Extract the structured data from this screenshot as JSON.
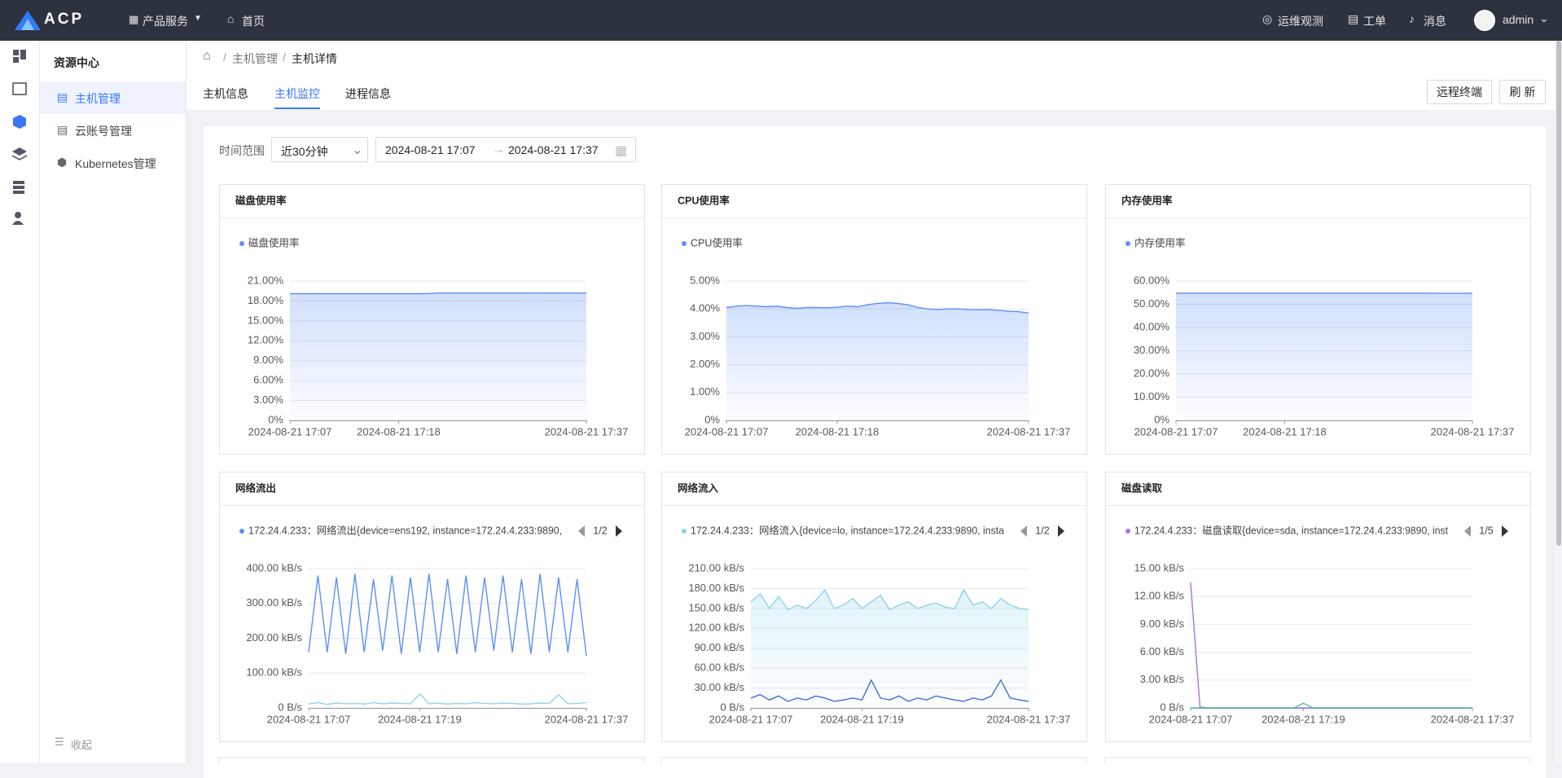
{
  "header": {
    "logo": "ACP",
    "menu": "产品服务",
    "home": "首页",
    "links": [
      "运维观测",
      "工单",
      "消息"
    ],
    "user": "admin"
  },
  "sidebar": {
    "title": "资源中心",
    "items": [
      "主机管理",
      "云账号管理",
      "Kubernetes管理"
    ],
    "collapse": "收起"
  },
  "breadcrumb": [
    "主机管理",
    "主机详情"
  ],
  "tabs": [
    "主机信息",
    "主机监控",
    "进程信息"
  ],
  "actions": [
    "远程终端",
    "刷 新"
  ],
  "filter": {
    "label": "时间范围",
    "range": "近30分钟",
    "start": "2024-08-21 17:07",
    "end": "2024-08-21 17:37"
  },
  "chart_data": [
    {
      "type": "line",
      "title": "磁盘使用率",
      "x": [
        "2024-08-21 17:07",
        "2024-08-21 17:08",
        "2024-08-21 17:09",
        "2024-08-21 17:10",
        "2024-08-21 17:11",
        "2024-08-21 17:12",
        "2024-08-21 17:13",
        "2024-08-21 17:14",
        "2024-08-21 17:15",
        "2024-08-21 17:16",
        "2024-08-21 17:17",
        "2024-08-21 17:18",
        "2024-08-21 17:19",
        "2024-08-21 17:20",
        "2024-08-21 17:21",
        "2024-08-21 17:22",
        "2024-08-21 17:23",
        "2024-08-21 17:24",
        "2024-08-21 17:25",
        "2024-08-21 17:26",
        "2024-08-21 17:27",
        "2024-08-21 17:28",
        "2024-08-21 17:29",
        "2024-08-21 17:30",
        "2024-08-21 17:31",
        "2024-08-21 17:32",
        "2024-08-21 17:33",
        "2024-08-21 17:34",
        "2024-08-21 17:35",
        "2024-08-21 17:36",
        "2024-08-21 17:37"
      ],
      "xticks": [
        "2024-08-21 17:07",
        "2024-08-21 17:18",
        "2024-08-21 17:37"
      ],
      "ylim": [
        0,
        21
      ],
      "yticks": [
        {
          "value": 0,
          "label": "0%"
        },
        {
          "value": 3,
          "label": "3.00%"
        },
        {
          "value": 6,
          "label": "6.00%"
        },
        {
          "value": 9,
          "label": "9.00%"
        },
        {
          "value": 12,
          "label": "12.00%"
        },
        {
          "value": 15,
          "label": "15.00%"
        },
        {
          "value": 18,
          "label": "18.00%"
        },
        {
          "value": 21,
          "label": "21.00%"
        }
      ],
      "grid": true,
      "series": [
        {
          "name": "磁盘使用率",
          "color": "#5b8ff9",
          "area": true,
          "values": [
            19.1,
            19.1,
            19.1,
            19.1,
            19.1,
            19.1,
            19.1,
            19.1,
            19.1,
            19.1,
            19.1,
            19.1,
            19.1,
            19.1,
            19.1,
            19.2,
            19.2,
            19.2,
            19.2,
            19.2,
            19.2,
            19.2,
            19.2,
            19.2,
            19.2,
            19.2,
            19.2,
            19.2,
            19.2,
            19.2,
            19.2
          ]
        }
      ]
    },
    {
      "type": "line",
      "title": "CPU使用率",
      "x": [
        "2024-08-21 17:07",
        "2024-08-21 17:08",
        "2024-08-21 17:09",
        "2024-08-21 17:10",
        "2024-08-21 17:11",
        "2024-08-21 17:12",
        "2024-08-21 17:13",
        "2024-08-21 17:14",
        "2024-08-21 17:15",
        "2024-08-21 17:16",
        "2024-08-21 17:17",
        "2024-08-21 17:18",
        "2024-08-21 17:19",
        "2024-08-21 17:20",
        "2024-08-21 17:21",
        "2024-08-21 17:22",
        "2024-08-21 17:23",
        "2024-08-21 17:24",
        "2024-08-21 17:25",
        "2024-08-21 17:26",
        "2024-08-21 17:27",
        "2024-08-21 17:28",
        "2024-08-21 17:29",
        "2024-08-21 17:30",
        "2024-08-21 17:31",
        "2024-08-21 17:32",
        "2024-08-21 17:33",
        "2024-08-21 17:34",
        "2024-08-21 17:35",
        "2024-08-21 17:36",
        "2024-08-21 17:37"
      ],
      "xticks": [
        "2024-08-21 17:07",
        "2024-08-21 17:18",
        "2024-08-21 17:37"
      ],
      "ylim": [
        0,
        5
      ],
      "yticks": [
        {
          "value": 0,
          "label": "0%"
        },
        {
          "value": 1,
          "label": "1.00%"
        },
        {
          "value": 2,
          "label": "2.00%"
        },
        {
          "value": 3,
          "label": "3.00%"
        },
        {
          "value": 4,
          "label": "4.00%"
        },
        {
          "value": 5,
          "label": "5.00%"
        }
      ],
      "grid": true,
      "series": [
        {
          "name": "CPU使用率",
          "color": "#5b8ff9",
          "area": true,
          "values": [
            4.05,
            4.1,
            4.12,
            4.1,
            4.08,
            4.1,
            4.05,
            4.02,
            4.05,
            4.05,
            4.04,
            4.06,
            4.1,
            4.08,
            4.15,
            4.2,
            4.22,
            4.2,
            4.15,
            4.05,
            4.0,
            3.98,
            4.0,
            4.0,
            3.98,
            3.97,
            3.98,
            3.95,
            3.92,
            3.9,
            3.85
          ]
        }
      ]
    },
    {
      "type": "line",
      "title": "内存使用率",
      "x": [
        "2024-08-21 17:07",
        "2024-08-21 17:08",
        "2024-08-21 17:09",
        "2024-08-21 17:10",
        "2024-08-21 17:11",
        "2024-08-21 17:12",
        "2024-08-21 17:13",
        "2024-08-21 17:14",
        "2024-08-21 17:15",
        "2024-08-21 17:16",
        "2024-08-21 17:17",
        "2024-08-21 17:18",
        "2024-08-21 17:19",
        "2024-08-21 17:20",
        "2024-08-21 17:21",
        "2024-08-21 17:22",
        "2024-08-21 17:23",
        "2024-08-21 17:24",
        "2024-08-21 17:25",
        "2024-08-21 17:26",
        "2024-08-21 17:27",
        "2024-08-21 17:28",
        "2024-08-21 17:29",
        "2024-08-21 17:30",
        "2024-08-21 17:31",
        "2024-08-21 17:32",
        "2024-08-21 17:33",
        "2024-08-21 17:34",
        "2024-08-21 17:35",
        "2024-08-21 17:36",
        "2024-08-21 17:37"
      ],
      "xticks": [
        "2024-08-21 17:07",
        "2024-08-21 17:18",
        "2024-08-21 17:37"
      ],
      "ylim": [
        0,
        60
      ],
      "yticks": [
        {
          "value": 0,
          "label": "0%"
        },
        {
          "value": 10,
          "label": "10.00%"
        },
        {
          "value": 20,
          "label": "20.00%"
        },
        {
          "value": 30,
          "label": "30.00%"
        },
        {
          "value": 40,
          "label": "40.00%"
        },
        {
          "value": 50,
          "label": "50.00%"
        },
        {
          "value": 60,
          "label": "60.00%"
        }
      ],
      "grid": true,
      "series": [
        {
          "name": "内存使用率",
          "color": "#5b8ff9",
          "area": true,
          "values": [
            54.8,
            54.8,
            54.8,
            54.8,
            54.8,
            54.8,
            54.8,
            54.8,
            54.8,
            54.8,
            54.8,
            54.8,
            54.8,
            54.8,
            54.8,
            54.8,
            54.8,
            54.8,
            54.8,
            54.8,
            54.8,
            54.8,
            54.8,
            54.8,
            54.8,
            54.8,
            54.7,
            54.7,
            54.7,
            54.7,
            54.7
          ]
        }
      ]
    },
    {
      "type": "line",
      "title": "网络流出",
      "legend_page": "1/2",
      "x": [
        "2024-08-21 17:07",
        "2024-08-21 17:08",
        "2024-08-21 17:09",
        "2024-08-21 17:10",
        "2024-08-21 17:11",
        "2024-08-21 17:12",
        "2024-08-21 17:13",
        "2024-08-21 17:14",
        "2024-08-21 17:15",
        "2024-08-21 17:16",
        "2024-08-21 17:17",
        "2024-08-21 17:18",
        "2024-08-21 17:19",
        "2024-08-21 17:20",
        "2024-08-21 17:21",
        "2024-08-21 17:22",
        "2024-08-21 17:23",
        "2024-08-21 17:24",
        "2024-08-21 17:25",
        "2024-08-21 17:26",
        "2024-08-21 17:27",
        "2024-08-21 17:28",
        "2024-08-21 17:29",
        "2024-08-21 17:30",
        "2024-08-21 17:31",
        "2024-08-21 17:32",
        "2024-08-21 17:33",
        "2024-08-21 17:34",
        "2024-08-21 17:35",
        "2024-08-21 17:36",
        "2024-08-21 17:37"
      ],
      "xticks": [
        "2024-08-21 17:07",
        "2024-08-21 17:19",
        "2024-08-21 17:37"
      ],
      "ylim": [
        0,
        400
      ],
      "yticks": [
        {
          "value": 0,
          "label": "0 B/s"
        },
        {
          "value": 100,
          "label": "100.00 kB/s"
        },
        {
          "value": 200,
          "label": "200.00 kB/s"
        },
        {
          "value": 300,
          "label": "300.00 kB/s"
        },
        {
          "value": 400,
          "label": "400.00 kB/s"
        }
      ],
      "grid": true,
      "series": [
        {
          "name": "172.24.4.233：网络流出{device=ens192, instance=172.24.4.233:9890,",
          "color": "#5b8ff9",
          "values": [
            160,
            380,
            160,
            375,
            155,
            385,
            160,
            370,
            165,
            380,
            155,
            375,
            160,
            385,
            160,
            370,
            155,
            380,
            160,
            375,
            165,
            380,
            160,
            370,
            155,
            385,
            160,
            375,
            160,
            370,
            150
          ]
        },
        {
          "color": "#8fd3ec",
          "values": [
            12,
            15,
            10,
            14,
            12,
            13,
            11,
            15,
            12,
            14,
            13,
            12,
            40,
            12,
            14,
            11,
            13,
            12,
            15,
            13,
            12,
            14,
            13,
            11,
            12,
            14,
            13,
            38,
            12,
            13,
            15
          ]
        }
      ]
    },
    {
      "type": "line",
      "title": "网络流入",
      "legend_page": "1/2",
      "x": [
        "2024-08-21 17:07",
        "2024-08-21 17:08",
        "2024-08-21 17:09",
        "2024-08-21 17:10",
        "2024-08-21 17:11",
        "2024-08-21 17:12",
        "2024-08-21 17:13",
        "2024-08-21 17:14",
        "2024-08-21 17:15",
        "2024-08-21 17:16",
        "2024-08-21 17:17",
        "2024-08-21 17:18",
        "2024-08-21 17:19",
        "2024-08-21 17:20",
        "2024-08-21 17:21",
        "2024-08-21 17:22",
        "2024-08-21 17:23",
        "2024-08-21 17:24",
        "2024-08-21 17:25",
        "2024-08-21 17:26",
        "2024-08-21 17:27",
        "2024-08-21 17:28",
        "2024-08-21 17:29",
        "2024-08-21 17:30",
        "2024-08-21 17:31",
        "2024-08-21 17:32",
        "2024-08-21 17:33",
        "2024-08-21 17:34",
        "2024-08-21 17:35",
        "2024-08-21 17:36",
        "2024-08-21 17:37"
      ],
      "xticks": [
        "2024-08-21 17:07",
        "2024-08-21 17:19",
        "2024-08-21 17:37"
      ],
      "ylim": [
        0,
        210
      ],
      "yticks": [
        {
          "value": 0,
          "label": "0 B/s"
        },
        {
          "value": 30,
          "label": "30.00 kB/s"
        },
        {
          "value": 60,
          "label": "60.00 kB/s"
        },
        {
          "value": 90,
          "label": "90.00 kB/s"
        },
        {
          "value": 120,
          "label": "120.00 kB/s"
        },
        {
          "value": 150,
          "label": "150.00 kB/s"
        },
        {
          "value": 180,
          "label": "180.00 kB/s"
        },
        {
          "value": 210,
          "label": "210.00 kB/s"
        }
      ],
      "grid": true,
      "series": [
        {
          "name": "172.24.4.233：网络流入{device=lo, instance=172.24.4.233:9890, insta",
          "color": "#8fd3ec",
          "area": true,
          "values": [
            160,
            172,
            150,
            168,
            148,
            155,
            150,
            162,
            178,
            150,
            155,
            165,
            150,
            160,
            170,
            148,
            155,
            160,
            150,
            155,
            158,
            152,
            150,
            178,
            155,
            160,
            150,
            165,
            155,
            150,
            148
          ]
        },
        {
          "color": "#3f6fd8",
          "values": [
            15,
            20,
            12,
            18,
            10,
            15,
            12,
            18,
            15,
            10,
            12,
            15,
            12,
            42,
            15,
            12,
            18,
            10,
            15,
            12,
            18,
            15,
            12,
            10,
            15,
            12,
            18,
            42,
            15,
            12,
            10
          ]
        }
      ]
    },
    {
      "type": "line",
      "title": "磁盘读取",
      "legend_page": "1/5",
      "x": [
        "2024-08-21 17:07",
        "2024-08-21 17:08",
        "2024-08-21 17:09",
        "2024-08-21 17:10",
        "2024-08-21 17:11",
        "2024-08-21 17:12",
        "2024-08-21 17:13",
        "2024-08-21 17:14",
        "2024-08-21 17:15",
        "2024-08-21 17:16",
        "2024-08-21 17:17",
        "2024-08-21 17:18",
        "2024-08-21 17:19",
        "2024-08-21 17:20",
        "2024-08-21 17:21",
        "2024-08-21 17:22",
        "2024-08-21 17:23",
        "2024-08-21 17:24",
        "2024-08-21 17:25",
        "2024-08-21 17:26",
        "2024-08-21 17:27",
        "2024-08-21 17:28",
        "2024-08-21 17:29",
        "2024-08-21 17:30",
        "2024-08-21 17:31",
        "2024-08-21 17:32",
        "2024-08-21 17:33",
        "2024-08-21 17:34",
        "2024-08-21 17:35",
        "2024-08-21 17:36",
        "2024-08-21 17:37"
      ],
      "xticks": [
        "2024-08-21 17:07",
        "2024-08-21 17:19",
        "2024-08-21 17:37"
      ],
      "ylim": [
        0,
        15
      ],
      "yticks": [
        {
          "value": 0,
          "label": "0 B/s"
        },
        {
          "value": 3,
          "label": "3.00 kB/s"
        },
        {
          "value": 6,
          "label": "6.00 kB/s"
        },
        {
          "value": 9,
          "label": "9.00 kB/s"
        },
        {
          "value": 12,
          "label": "12.00 kB/s"
        },
        {
          "value": 15,
          "label": "15.00 kB/s"
        }
      ],
      "grid": true,
      "series": [
        {
          "name": "172.24.4.233：磁盘读取{device=sda, instance=172.24.4.233:9890, inst",
          "color": "#a873e8",
          "values": [
            13.5,
            0.1,
            0,
            0,
            0,
            0,
            0,
            0,
            0,
            0,
            0,
            0,
            0,
            0,
            0,
            0,
            0,
            0,
            0,
            0,
            0,
            0,
            0,
            0,
            0,
            0,
            0,
            0,
            0,
            0,
            0
          ]
        },
        {
          "color": "#4fbf9f",
          "values": [
            0,
            0,
            0,
            0,
            0,
            0,
            0,
            0,
            0,
            0,
            0,
            0,
            0.5,
            0,
            0,
            0,
            0,
            0,
            0,
            0,
            0,
            0,
            0,
            0,
            0,
            0,
            0,
            0,
            0,
            0,
            0
          ]
        }
      ]
    }
  ]
}
